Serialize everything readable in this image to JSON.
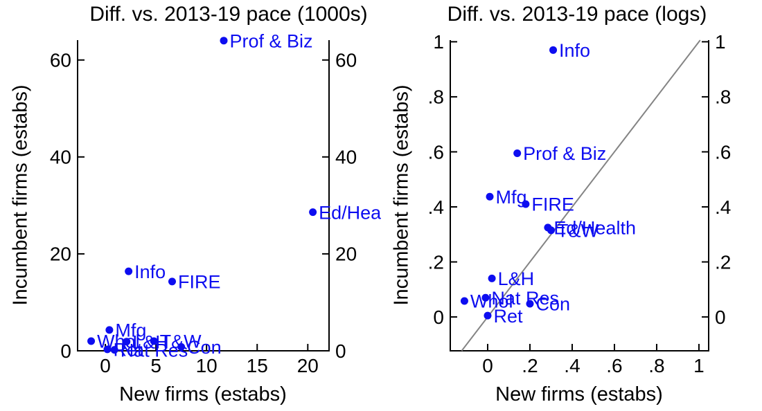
{
  "figure": {
    "background": "#ffffff",
    "colors": {
      "point": "#0d0df0",
      "axis": "#000000",
      "ref_line": "#848484",
      "tick_text": "#000000"
    }
  },
  "chart_data": [
    {
      "type": "scatter",
      "title": "Diff. vs. 2013-19 pace (1000s)",
      "xlabel": "New firms (estabs)",
      "ylabel": "Incumbent firms (estabs)",
      "xlim": [
        -2.74,
        22.1
      ],
      "ylim": [
        0,
        64.1
      ],
      "x_ticks": [
        0,
        5,
        10,
        15,
        20
      ],
      "x_tick_labels": [
        "0",
        "5",
        "10",
        "15",
        "20"
      ],
      "y_ticks": [
        0,
        20,
        40,
        60
      ],
      "y_tick_labels": [
        "0",
        "20",
        "40",
        "60"
      ],
      "grid": false,
      "legend": "none",
      "points": [
        {
          "label": "Prof & Biz",
          "x": 11.7,
          "y": 64.0
        },
        {
          "label": "Ed/Health",
          "x": 20.5,
          "y": 28.6
        },
        {
          "label": "Info",
          "x": 2.3,
          "y": 16.4
        },
        {
          "label": "FIRE",
          "x": 6.6,
          "y": 14.3
        },
        {
          "label": "Mfg",
          "x": 0.4,
          "y": 4.3
        },
        {
          "label": "Whol",
          "x": -1.4,
          "y": 2.0
        },
        {
          "label": "L&H",
          "x": 2.1,
          "y": 1.9
        },
        {
          "label": "T&W",
          "x": 4.8,
          "y": 2.0
        },
        {
          "label": "Con",
          "x": 7.5,
          "y": 0.8
        },
        {
          "label": "Ret",
          "x": 0.2,
          "y": 0.3
        },
        {
          "label": "Nat Res",
          "x": 0.9,
          "y": 0.2
        }
      ]
    },
    {
      "type": "scatter",
      "title": "Diff. vs. 2013-19 pace (logs)",
      "xlabel": "New firms (estabs)",
      "ylabel": "Incumbent firms (estabs)",
      "xlim": [
        -0.177,
        1.046
      ],
      "ylim": [
        -0.123,
        1.006
      ],
      "x_ticks": [
        0,
        0.2,
        0.4,
        0.6,
        0.8,
        1
      ],
      "x_tick_labels": [
        "0",
        ".2",
        ".4",
        ".6",
        ".8",
        "1"
      ],
      "y_ticks": [
        0,
        0.2,
        0.4,
        0.6,
        0.8,
        1
      ],
      "y_tick_labels": [
        "0",
        ".2",
        ".4",
        ".6",
        ".8",
        "1"
      ],
      "grid": false,
      "legend": "none",
      "ref_line": {
        "x1": -0.123,
        "y1": -0.123,
        "x2": 1.006,
        "y2": 1.006
      },
      "points": [
        {
          "label": "Info",
          "x": 0.31,
          "y": 0.97
        },
        {
          "label": "Prof & Biz",
          "x": 0.14,
          "y": 0.595
        },
        {
          "label": "Mfg",
          "x": 0.01,
          "y": 0.437
        },
        {
          "label": "FIRE",
          "x": 0.18,
          "y": 0.41
        },
        {
          "label": "Ed/Health",
          "x": 0.285,
          "y": 0.325
        },
        {
          "label": "T&W",
          "x": 0.3,
          "y": 0.315
        },
        {
          "label": "L&H",
          "x": 0.02,
          "y": 0.14
        },
        {
          "label": "Nat Res",
          "x": -0.01,
          "y": 0.07
        },
        {
          "label": "Whol",
          "x": -0.11,
          "y": 0.058
        },
        {
          "label": "Con",
          "x": 0.2,
          "y": 0.048
        },
        {
          "label": "Ret",
          "x": 0.0,
          "y": 0.005
        }
      ]
    }
  ]
}
